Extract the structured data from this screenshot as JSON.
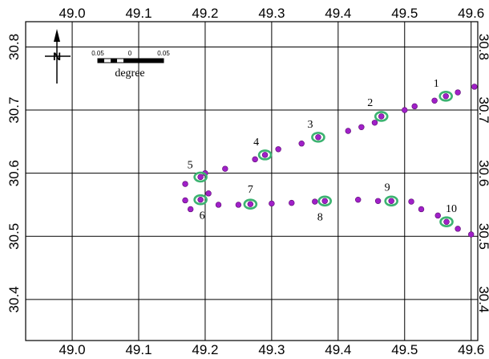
{
  "chart_data": {
    "type": "scatter",
    "x_ticks": [
      "49.0",
      "49.1",
      "49.2",
      "49.3",
      "49.4",
      "49.5",
      "49.6"
    ],
    "y_ticks": [
      "30.8",
      "30.7",
      "30.6",
      "30.5",
      "30.4"
    ],
    "xlim": [
      48.93,
      49.61
    ],
    "ylim": [
      30.335,
      30.84
    ],
    "grid": true,
    "marker_color": "#a020c8",
    "highlight_color": "#3cb371",
    "points": [
      [
        49.17,
        30.583
      ],
      [
        49.17,
        30.557
      ],
      [
        49.178,
        30.543
      ],
      [
        49.2,
        30.6
      ],
      [
        49.205,
        30.568
      ],
      [
        49.22,
        30.55
      ],
      [
        49.23,
        30.607
      ],
      [
        49.25,
        30.55
      ],
      [
        49.275,
        30.622
      ],
      [
        49.3,
        30.552
      ],
      [
        49.31,
        30.638
      ],
      [
        49.33,
        30.553
      ],
      [
        49.345,
        30.647
      ],
      [
        49.365,
        30.555
      ],
      [
        49.415,
        30.667
      ],
      [
        49.43,
        30.558
      ],
      [
        49.435,
        30.673
      ],
      [
        49.455,
        30.68
      ],
      [
        49.46,
        30.556
      ],
      [
        49.5,
        30.7
      ],
      [
        49.51,
        30.555
      ],
      [
        49.515,
        30.706
      ],
      [
        49.525,
        30.543
      ],
      [
        49.545,
        30.715
      ],
      [
        49.55,
        30.533
      ],
      [
        49.58,
        30.728
      ],
      [
        49.58,
        30.512
      ],
      [
        49.605,
        30.737
      ],
      [
        49.6,
        30.503
      ]
    ],
    "stations": [
      {
        "label": "1",
        "x": 49.562,
        "y": 30.722
      },
      {
        "label": "2",
        "x": 49.465,
        "y": 30.69
      },
      {
        "label": "3",
        "x": 49.37,
        "y": 30.657
      },
      {
        "label": "4",
        "x": 49.29,
        "y": 30.629
      },
      {
        "label": "5",
        "x": 49.193,
        "y": 30.594
      },
      {
        "label": "6",
        "x": 49.193,
        "y": 30.558
      },
      {
        "label": "7",
        "x": 49.268,
        "y": 30.551
      },
      {
        "label": "8",
        "x": 49.38,
        "y": 30.556
      },
      {
        "label": "9",
        "x": 49.48,
        "y": 30.556
      },
      {
        "label": "10",
        "x": 49.563,
        "y": 30.523
      }
    ]
  },
  "north_arrow": {
    "letter": "N",
    "icon": "north-arrow-icon"
  },
  "scale_bar": {
    "labels": [
      "0.05",
      "0",
      "0.05"
    ],
    "unit": "degree"
  }
}
